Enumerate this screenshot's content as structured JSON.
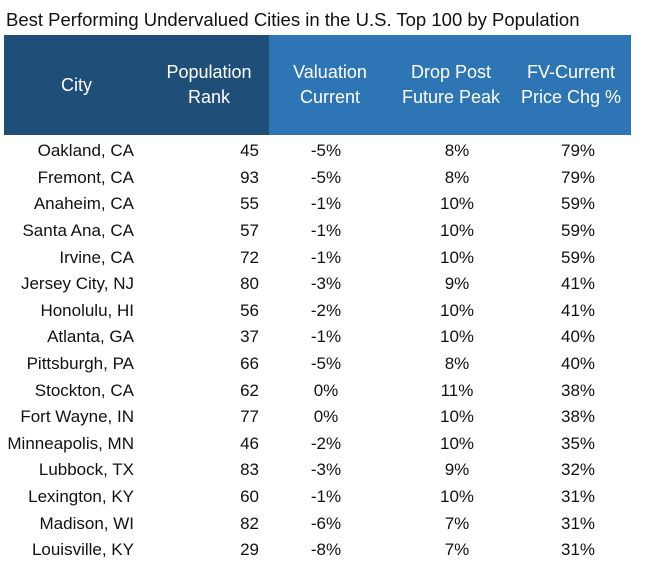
{
  "title": "Best Performing Undervalued Cities in the U.S. Top 100 by Population",
  "colors": {
    "header_dark": "#1f4e79",
    "header_light": "#2e75b6"
  },
  "columns": [
    {
      "key": "city",
      "label": "City"
    },
    {
      "key": "rank",
      "label": "Population\nRank"
    },
    {
      "key": "valuation",
      "label": "Valuation\nCurrent"
    },
    {
      "key": "drop",
      "label": "Drop Post\nFuture Peak"
    },
    {
      "key": "fv",
      "label": "FV-Current\nPrice Chg %"
    }
  ],
  "rows": [
    {
      "city": "Oakland, CA",
      "rank": "45",
      "valuation": "-5%",
      "drop": "8%",
      "fv": "79%"
    },
    {
      "city": "Fremont, CA",
      "rank": "93",
      "valuation": "-5%",
      "drop": "8%",
      "fv": "79%"
    },
    {
      "city": "Anaheim, CA",
      "rank": "55",
      "valuation": "-1%",
      "drop": "10%",
      "fv": "59%"
    },
    {
      "city": "Santa Ana, CA",
      "rank": "57",
      "valuation": "-1%",
      "drop": "10%",
      "fv": "59%"
    },
    {
      "city": "Irvine, CA",
      "rank": "72",
      "valuation": "-1%",
      "drop": "10%",
      "fv": "59%"
    },
    {
      "city": "Jersey City, NJ",
      "rank": "80",
      "valuation": "-3%",
      "drop": "9%",
      "fv": "41%"
    },
    {
      "city": "Honolulu, HI",
      "rank": "56",
      "valuation": "-2%",
      "drop": "10%",
      "fv": "41%"
    },
    {
      "city": "Atlanta, GA",
      "rank": "37",
      "valuation": "-1%",
      "drop": "10%",
      "fv": "40%"
    },
    {
      "city": "Pittsburgh, PA",
      "rank": "66",
      "valuation": "-5%",
      "drop": "8%",
      "fv": "40%"
    },
    {
      "city": "Stockton, CA",
      "rank": "62",
      "valuation": "0%",
      "drop": "11%",
      "fv": "38%"
    },
    {
      "city": "Fort Wayne, IN",
      "rank": "77",
      "valuation": "0%",
      "drop": "10%",
      "fv": "38%"
    },
    {
      "city": "Minneapolis, MN",
      "rank": "46",
      "valuation": "-2%",
      "drop": "10%",
      "fv": "35%"
    },
    {
      "city": "Lubbock, TX",
      "rank": "83",
      "valuation": "-3%",
      "drop": "9%",
      "fv": "32%"
    },
    {
      "city": "Lexington, KY",
      "rank": "60",
      "valuation": "-1%",
      "drop": "10%",
      "fv": "31%"
    },
    {
      "city": "Madison, WI",
      "rank": "82",
      "valuation": "-6%",
      "drop": "7%",
      "fv": "31%"
    },
    {
      "city": "Louisville, KY",
      "rank": "29",
      "valuation": "-8%",
      "drop": "7%",
      "fv": "31%"
    }
  ]
}
